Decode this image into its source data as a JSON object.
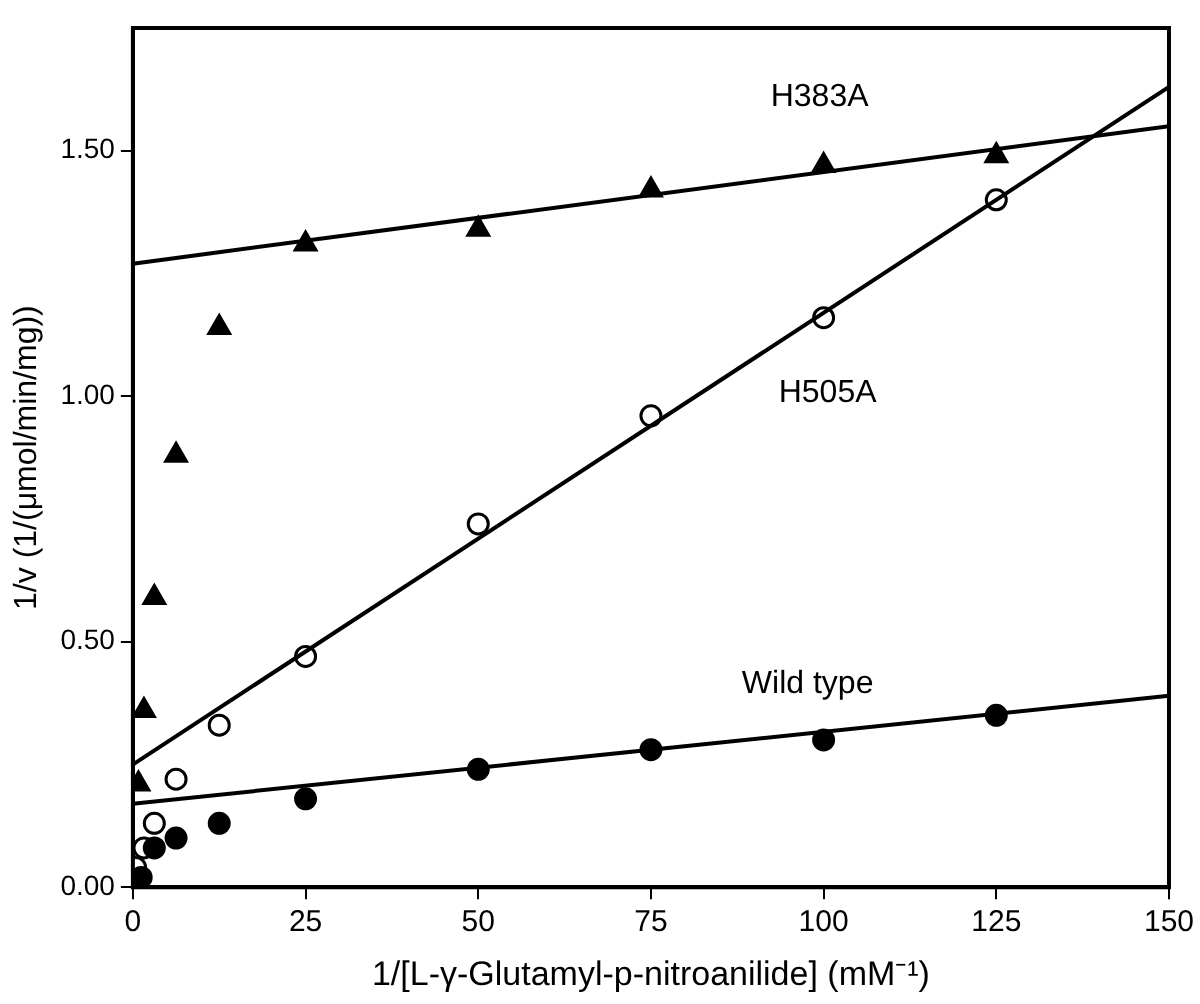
{
  "chart_data": {
    "type": "scatter",
    "xlabel": "1/[L-γ-Glutamyl-p-nitroanilide] (mM⁻¹)",
    "ylabel": "1/v (1/(μmol/min/mg))",
    "xlim": [
      0,
      150
    ],
    "ylim": [
      0,
      1.75
    ],
    "xticks": [
      0,
      25,
      50,
      75,
      100,
      125,
      150
    ],
    "yticks": [
      {
        "value": 0,
        "label": "0.00"
      },
      {
        "value": 0.5,
        "label": "0.50"
      },
      {
        "value": 1,
        "label": "1.00"
      },
      {
        "value": 1.5,
        "label": "1.50"
      }
    ],
    "grid": false,
    "legend": false,
    "series": [
      {
        "name": "H383A",
        "marker": "triangle",
        "color": "#000000",
        "x": [
          0.8,
          1.6,
          3.1,
          6.25,
          12.5,
          25,
          50,
          75,
          100,
          125
        ],
        "values": [
          0.21,
          0.36,
          0.59,
          0.88,
          1.14,
          1.31,
          1.34,
          1.42,
          1.47,
          1.49
        ]
      },
      {
        "type": "line",
        "marker": "none",
        "color": "#000000",
        "x": [
          0,
          150
        ],
        "values": [
          1.27,
          1.55
        ]
      },
      {
        "name": "H505A",
        "marker": "circle",
        "color": "#000000",
        "x": [
          0.4,
          1.6,
          3.1,
          6.25,
          12.5,
          25,
          50,
          75,
          100,
          125
        ],
        "values": [
          0.04,
          0.08,
          0.13,
          0.22,
          0.33,
          0.47,
          0.74,
          0.96,
          1.16,
          1.4
        ]
      },
      {
        "type": "line",
        "marker": "none",
        "color": "#000000",
        "x": [
          0,
          150
        ],
        "values": [
          0.25,
          1.63
        ]
      },
      {
        "name": "Wild type",
        "marker": "circle",
        "color": "#000000",
        "x": [
          1.2,
          3.1,
          6.25,
          12.5,
          25,
          50,
          75,
          100,
          125
        ],
        "values": [
          0.02,
          0.08,
          0.1,
          0.13,
          0.18,
          0.24,
          0.28,
          0.3,
          0.35
        ]
      },
      {
        "type": "line",
        "marker": "none",
        "color": "#000000",
        "x": [
          0,
          150
        ],
        "values": [
          0.17,
          0.39
        ]
      }
    ]
  }
}
